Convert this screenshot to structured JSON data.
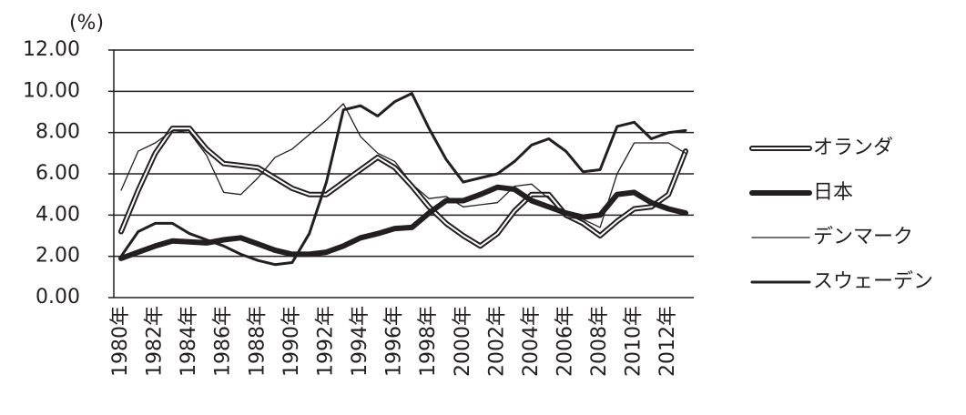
{
  "chart_data": {
    "type": "line",
    "y_unit_label": "(%)",
    "categories": [
      "1980年",
      null,
      "1982年",
      null,
      "1984年",
      null,
      "1986年",
      null,
      "1988年",
      null,
      "1990年",
      null,
      "1992年",
      null,
      "1994年",
      null,
      "1996年",
      null,
      "1998年",
      null,
      "2000年",
      null,
      "2002年",
      null,
      "2004年",
      null,
      "2006年",
      null,
      "2008年",
      null,
      "2010年",
      null,
      "2012年",
      null
    ],
    "ylim": [
      0,
      12
    ],
    "yticks": [
      {
        "value": 0,
        "label": "0.00"
      },
      {
        "value": 2,
        "label": "2.00"
      },
      {
        "value": 4,
        "label": "4.00"
      },
      {
        "value": 6,
        "label": "6.00"
      },
      {
        "value": 8,
        "label": "8.00"
      },
      {
        "value": 10,
        "label": "10.00"
      },
      {
        "value": 12,
        "label": "12.00"
      }
    ],
    "grid": true,
    "legend": "right",
    "series": [
      {
        "name": "オランダ",
        "color": "#231f20",
        "style": "double",
        "line_width": 6,
        "values": [
          3.2,
          5.2,
          7.0,
          8.2,
          8.2,
          7.2,
          6.5,
          6.4,
          6.3,
          5.8,
          5.3,
          5.0,
          5.0,
          5.6,
          6.2,
          6.8,
          6.3,
          5.4,
          4.4,
          3.6,
          3.0,
          2.5,
          3.1,
          4.2,
          5.0,
          5.0,
          4.0,
          3.6,
          3.0,
          3.7,
          4.3,
          4.4,
          5.0,
          7.1
        ]
      },
      {
        "name": "日本",
        "color": "#231f20",
        "style": "solid",
        "line_width": 6,
        "values": [
          1.9,
          2.2,
          2.5,
          2.75,
          2.7,
          2.65,
          2.8,
          2.9,
          2.6,
          2.3,
          2.1,
          2.1,
          2.2,
          2.5,
          2.9,
          3.1,
          3.35,
          3.4,
          4.1,
          4.7,
          4.7,
          5.0,
          5.35,
          5.25,
          4.7,
          4.4,
          4.1,
          3.9,
          4.0,
          5.0,
          5.1,
          4.6,
          4.3,
          4.1
        ]
      },
      {
        "name": "デンマーク",
        "color": "#231f20",
        "style": "solid",
        "line_width": 1.3,
        "values": [
          5.2,
          7.1,
          7.5,
          8.1,
          8.0,
          6.9,
          5.1,
          5.0,
          5.8,
          6.8,
          7.2,
          7.9,
          8.6,
          9.4,
          7.8,
          7.0,
          6.6,
          5.5,
          4.8,
          4.9,
          4.4,
          4.5,
          4.6,
          5.4,
          5.5,
          4.8,
          3.9,
          3.8,
          3.4,
          6.0,
          7.5,
          7.5,
          7.5,
          7.0
        ]
      },
      {
        "name": "スウェーデン",
        "color": "#231f20",
        "style": "solid",
        "line_width": 3,
        "values": [
          2.0,
          3.2,
          3.6,
          3.6,
          3.1,
          2.8,
          2.5,
          2.1,
          1.8,
          1.6,
          1.7,
          3.1,
          5.6,
          9.1,
          9.3,
          8.8,
          9.5,
          9.9,
          8.2,
          6.7,
          5.6,
          5.8,
          6.0,
          6.6,
          7.4,
          7.7,
          7.1,
          6.1,
          6.2,
          8.3,
          8.5,
          7.7,
          8.0,
          8.1
        ]
      }
    ]
  }
}
